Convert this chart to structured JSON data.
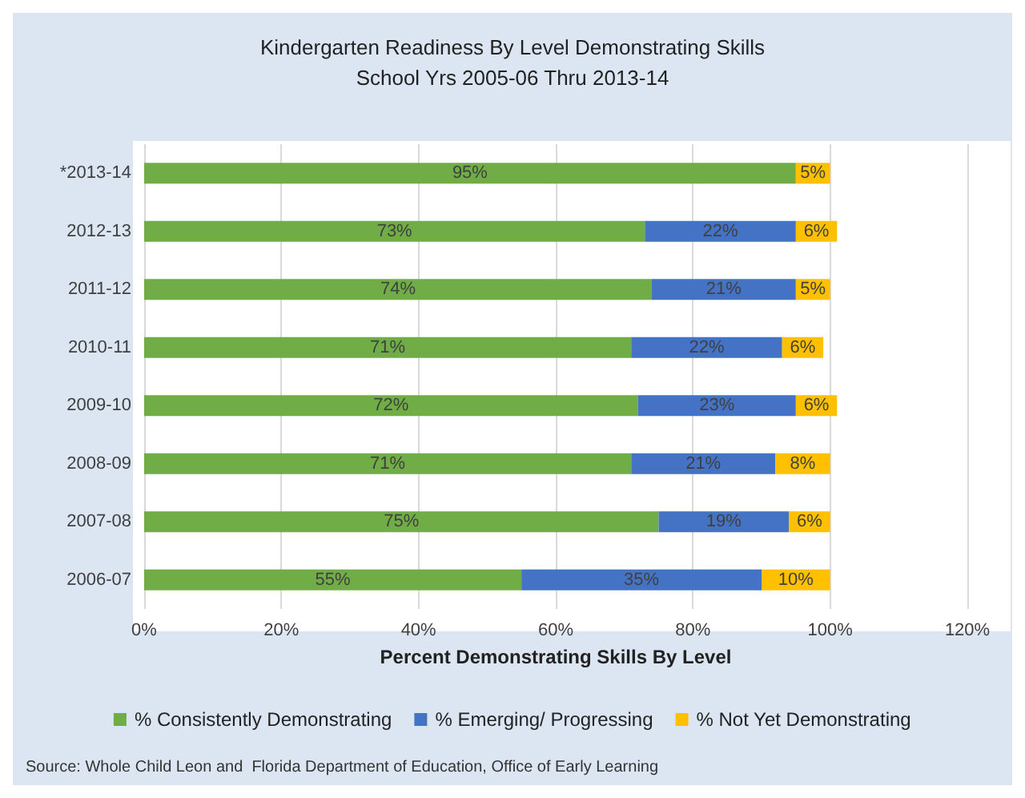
{
  "chart_data": {
    "type": "bar",
    "orientation": "horizontal",
    "stacked": true,
    "title": "Kindergarten Readiness By Level Demonstrating Skills",
    "subtitle": "School Yrs 2005-06 Thru 2013-14",
    "xlabel": "Percent Demonstrating Skills By Level",
    "categories": [
      "*2013-14",
      "2012-13",
      "2011-12",
      "2010-11",
      "2009-10",
      "2008-09",
      "2007-08",
      "2006-07"
    ],
    "series": [
      {
        "name": "% Consistently Demonstrating",
        "color": "#70ad47",
        "values": [
          95,
          73,
          74,
          71,
          72,
          71,
          75,
          55
        ],
        "value_labels": [
          "95%",
          "73%",
          "74%",
          "71%",
          "72%",
          "71%",
          "75%",
          "55%"
        ]
      },
      {
        "name": "% Emerging/ Progressing",
        "color": "#4472c4",
        "values": [
          null,
          22,
          21,
          22,
          23,
          21,
          19,
          35
        ],
        "value_labels": [
          null,
          "22%",
          "21%",
          "22%",
          "23%",
          "21%",
          "19%",
          "35%"
        ]
      },
      {
        "name": "% Not Yet Demonstrating",
        "color": "#ffc000",
        "values": [
          5,
          6,
          5,
          6,
          6,
          8,
          6,
          10
        ],
        "value_labels": [
          "5%",
          "6%",
          "5%",
          "6%",
          "6%",
          "8%",
          "6%",
          "10%"
        ]
      }
    ],
    "xlim": [
      0,
      120
    ],
    "xticks": [
      {
        "value": 0,
        "label": "0%"
      },
      {
        "value": 20,
        "label": "20%"
      },
      {
        "value": 40,
        "label": "40%"
      },
      {
        "value": 60,
        "label": "60%"
      },
      {
        "value": 80,
        "label": "80%"
      },
      {
        "value": 100,
        "label": "100%"
      },
      {
        "value": 120,
        "label": "120%"
      }
    ],
    "grid": "x",
    "legend": "bottom",
    "annotations": [
      "Source: Whole Child Leon and  Florida Department of Education, Office of Early Learning"
    ]
  }
}
